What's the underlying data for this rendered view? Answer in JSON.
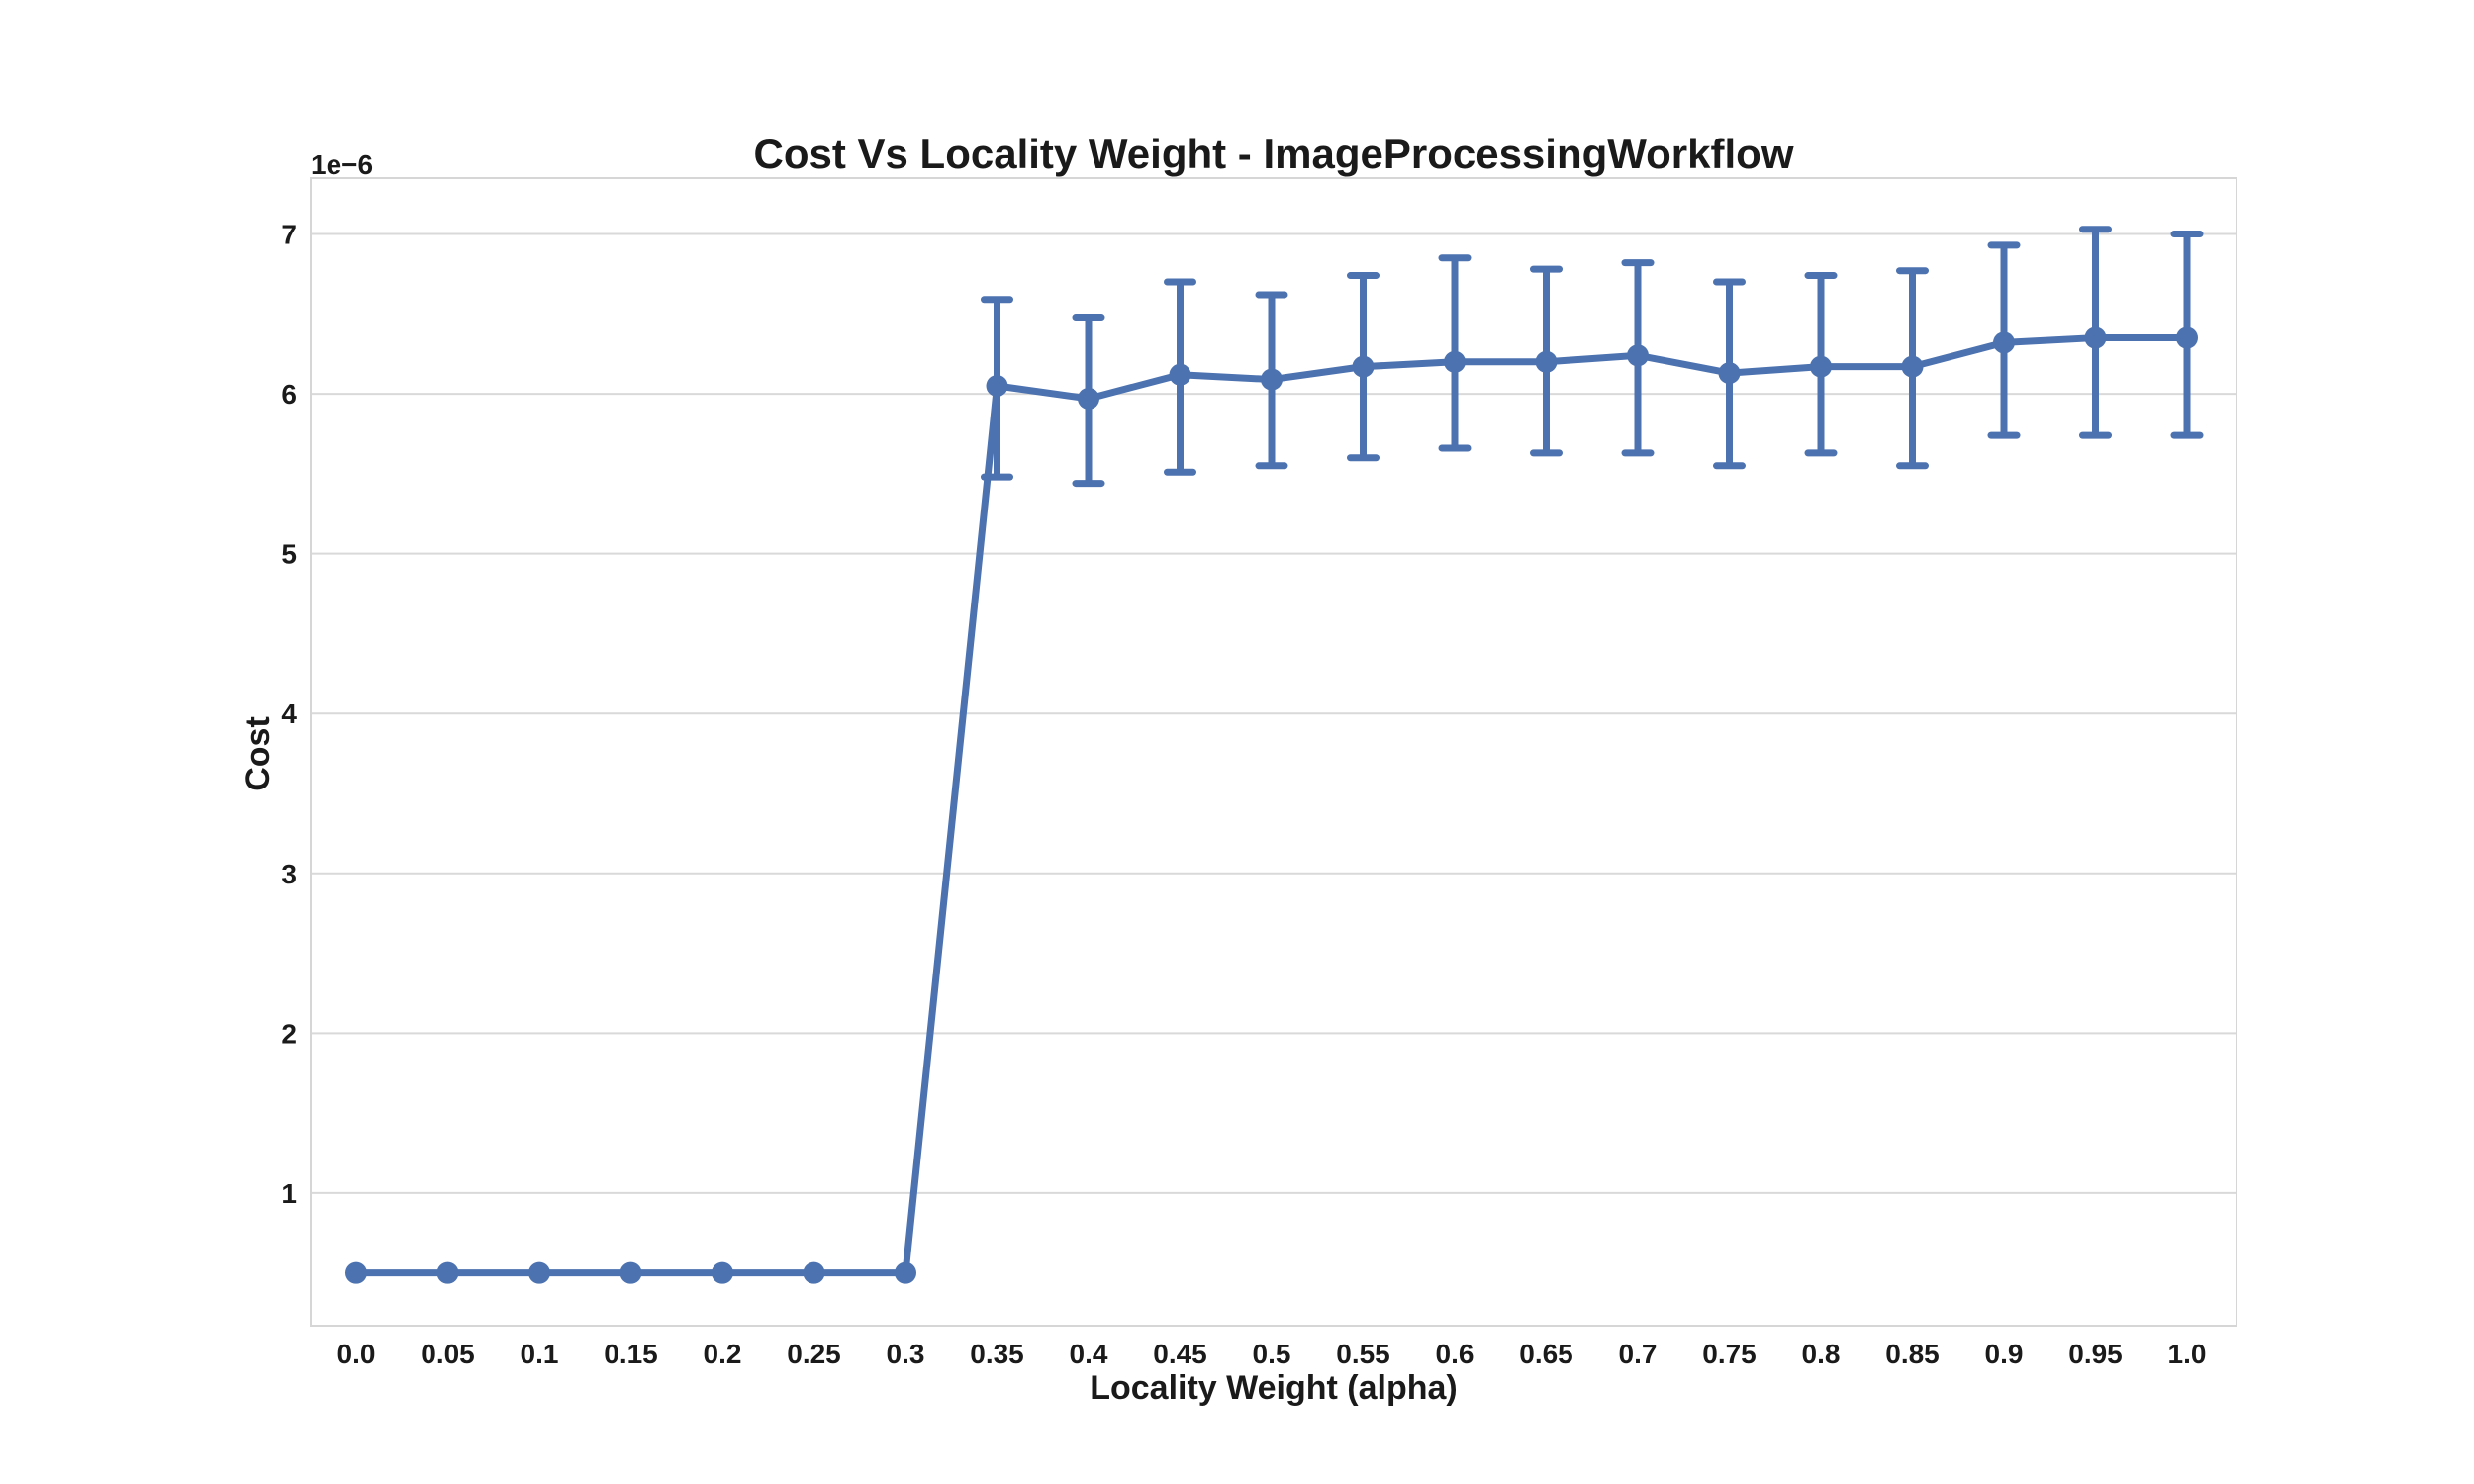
{
  "chart_data": {
    "type": "line",
    "title": "Cost Vs Locality Weight - ImageProcessingWorkflow",
    "xlabel": "Locality Weight (alpha)",
    "ylabel": "Cost",
    "y_offset_label": "1e−6",
    "categories": [
      "0.0",
      "0.05",
      "0.1",
      "0.15",
      "0.2",
      "0.25",
      "0.3",
      "0.35",
      "0.4",
      "0.45",
      "0.5",
      "0.55",
      "0.6",
      "0.65",
      "0.7",
      "0.75",
      "0.8",
      "0.85",
      "0.9",
      "0.95",
      "1.0"
    ],
    "y_ticks": [
      "1",
      "2",
      "3",
      "4",
      "5",
      "6",
      "7"
    ],
    "y_tick_values": [
      1,
      2,
      3,
      4,
      5,
      6,
      7
    ],
    "ylim": [
      0.17,
      7.35
    ],
    "y_unit_scale": 1e-06,
    "grid": "horizontal",
    "series": [
      {
        "values": [
          0.5,
          0.5,
          0.5,
          0.5,
          0.5,
          0.5,
          0.5,
          6.05,
          5.97,
          6.12,
          6.09,
          6.17,
          6.2,
          6.2,
          6.24,
          6.13,
          6.17,
          6.17,
          6.32,
          6.35,
          6.35
        ],
        "error_low": [
          0.5,
          0.5,
          0.5,
          0.5,
          0.5,
          0.5,
          0.5,
          5.48,
          5.44,
          5.51,
          5.55,
          5.6,
          5.66,
          5.63,
          5.63,
          5.55,
          5.63,
          5.55,
          5.74,
          5.74,
          5.74
        ],
        "error_high": [
          0.5,
          0.5,
          0.5,
          0.5,
          0.5,
          0.5,
          0.5,
          6.59,
          6.48,
          6.7,
          6.62,
          6.74,
          6.85,
          6.78,
          6.82,
          6.7,
          6.74,
          6.77,
          6.93,
          7.03,
          7.0
        ],
        "color": "#4c72b0"
      }
    ]
  }
}
